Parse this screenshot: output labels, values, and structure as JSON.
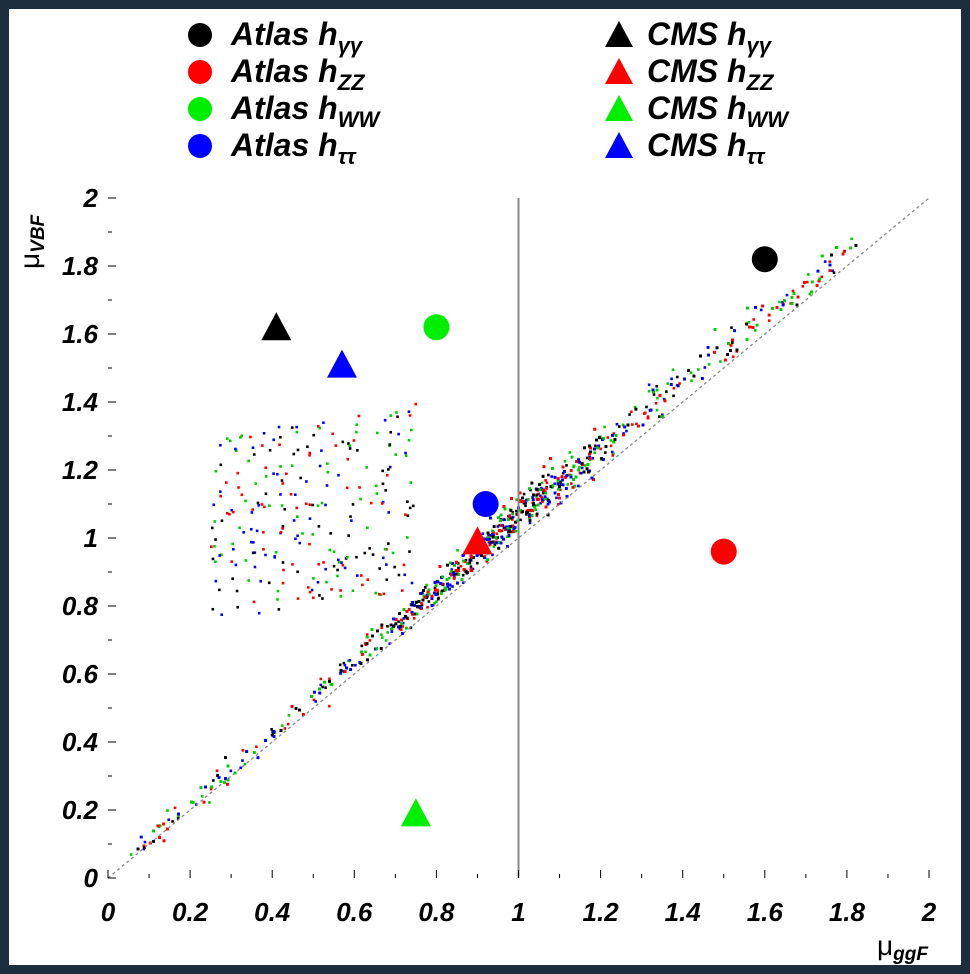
{
  "chart_data": {
    "type": "scatter",
    "title": "",
    "xlabel": "μ",
    "xlabel_sub": "ggF",
    "ylabel": "μ",
    "ylabel_sub": "VBF",
    "xlim": [
      0,
      2
    ],
    "ylim": [
      0,
      2
    ],
    "x_ticks": [
      "0",
      "0.2",
      "0.4",
      "0.6",
      "0.8",
      "1",
      "1.2",
      "1.4",
      "1.6",
      "1.8",
      "2"
    ],
    "y_ticks": [
      "0",
      "0.2",
      "0.4",
      "0.6",
      "0.8",
      "1",
      "1.2",
      "1.4",
      "1.6",
      "1.8",
      "2"
    ],
    "grid": false,
    "reference_lines": [
      {
        "type": "vertical",
        "x": 1,
        "style": "solid",
        "color": "#888888"
      },
      {
        "type": "diagonal",
        "from": [
          0,
          0
        ],
        "to": [
          2,
          2
        ],
        "style": "dotted",
        "color": "#888888"
      }
    ],
    "legend_position": "top",
    "series": [
      {
        "name": "Atlas h",
        "sub": "γγ",
        "marker": "circle",
        "color": "#000000",
        "values": [
          {
            "x": 1.6,
            "y": 1.82
          }
        ]
      },
      {
        "name": "Atlas h",
        "sub": "ZZ",
        "marker": "circle",
        "color": "#ff0000",
        "values": [
          {
            "x": 1.5,
            "y": 0.96
          }
        ]
      },
      {
        "name": "Atlas h",
        "sub": "WW",
        "marker": "circle",
        "color": "#00ee00",
        "values": [
          {
            "x": 0.8,
            "y": 1.62
          }
        ]
      },
      {
        "name": "Atlas h",
        "sub": "ττ",
        "marker": "circle",
        "color": "#0000ff",
        "values": [
          {
            "x": 0.92,
            "y": 1.1
          }
        ]
      },
      {
        "name": "CMS h",
        "sub": "γγ",
        "marker": "triangle",
        "color": "#000000",
        "values": [
          {
            "x": 0.41,
            "y": 1.62
          }
        ]
      },
      {
        "name": "CMS h",
        "sub": "ZZ",
        "marker": "triangle",
        "color": "#ff0000",
        "values": [
          {
            "x": 0.9,
            "y": 0.99
          }
        ]
      },
      {
        "name": "CMS h",
        "sub": "WW",
        "marker": "triangle",
        "color": "#00ee00",
        "values": [
          {
            "x": 0.75,
            "y": 0.19
          }
        ]
      },
      {
        "name": "CMS h",
        "sub": "ττ",
        "marker": "triangle",
        "color": "#0000ff",
        "values": [
          {
            "x": 0.57,
            "y": 1.51
          }
        ]
      }
    ],
    "scan_points": {
      "description_colors": [
        "#000000",
        "#ff0000",
        "#00cc00",
        "#0000ff"
      ],
      "count": 3600,
      "region": {
        "x_center": 0.93,
        "y_center": 1.1
      }
    }
  }
}
